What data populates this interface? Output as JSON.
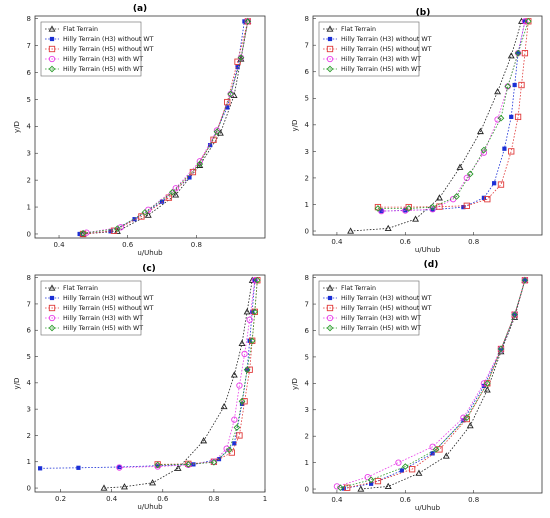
{
  "colors": {
    "flat": "#222222",
    "h3_without": "#1a2fd6",
    "h5_without": "#e03a3a",
    "h3_with": "#e83de8",
    "h5_with": "#2a9a2a"
  },
  "legend": [
    {
      "label": "Flat Terrain",
      "color": "#222222",
      "marker": "triangle"
    },
    {
      "label": "Hilly Terrain (H3) without WT",
      "color": "#1a2fd6",
      "marker": "square-filled"
    },
    {
      "label": "Hilly Terrain (H5) without WT",
      "color": "#e03a3a",
      "marker": "square"
    },
    {
      "label": "Hilly Terrain (H3) with WT",
      "color": "#e83de8",
      "marker": "circle"
    },
    {
      "label": "Hilly Terrain (H5) with WT",
      "color": "#2a9a2a",
      "marker": "diamond"
    }
  ],
  "chart_data": [
    {
      "type": "line",
      "title": "(a)",
      "xlabel": "u/Uhub",
      "ylabel": "y/D",
      "xlim": [
        0.33,
        1.0
      ],
      "ylim": [
        -0.15,
        8.1
      ],
      "xticks": [
        0.4,
        0.6,
        0.8
      ],
      "yticks": [
        0,
        1,
        2,
        3,
        4,
        5,
        6,
        7,
        8
      ],
      "series": [
        {
          "name": "Flat Terrain",
          "points": [
            [
              0.47,
              0.0
            ],
            [
              0.57,
              0.1
            ],
            [
              0.66,
              0.7
            ],
            [
              0.74,
              1.45
            ],
            [
              0.81,
              2.55
            ],
            [
              0.87,
              3.75
            ],
            [
              0.91,
              5.15
            ],
            [
              0.93,
              6.5
            ],
            [
              0.95,
              7.9
            ]
          ]
        },
        {
          "name": "Hilly Terrain (H3) without WT",
          "points": [
            [
              0.46,
              0.0
            ],
            [
              0.55,
              0.1
            ],
            [
              0.62,
              0.55
            ],
            [
              0.7,
              1.2
            ],
            [
              0.78,
              2.1
            ],
            [
              0.84,
              3.3
            ],
            [
              0.89,
              4.7
            ],
            [
              0.92,
              6.2
            ],
            [
              0.94,
              7.9
            ]
          ]
        },
        {
          "name": "Hilly Terrain (H5) without WT",
          "points": [
            [
              0.47,
              0.0
            ],
            [
              0.56,
              0.12
            ],
            [
              0.64,
              0.65
            ],
            [
              0.72,
              1.35
            ],
            [
              0.79,
              2.3
            ],
            [
              0.85,
              3.5
            ],
            [
              0.89,
              4.9
            ],
            [
              0.92,
              6.4
            ],
            [
              0.95,
              7.9
            ]
          ]
        },
        {
          "name": "Hilly Terrain (H3) with WT",
          "points": [
            [
              0.48,
              0.05
            ],
            [
              0.58,
              0.25
            ],
            [
              0.66,
              0.9
            ],
            [
              0.74,
              1.7
            ],
            [
              0.81,
              2.7
            ],
            [
              0.86,
              3.85
            ],
            [
              0.9,
              5.2
            ],
            [
              0.93,
              6.55
            ],
            [
              0.95,
              7.9
            ]
          ]
        },
        {
          "name": "Hilly Terrain (H5) with WT",
          "points": [
            [
              0.47,
              0.03
            ],
            [
              0.57,
              0.2
            ],
            [
              0.65,
              0.8
            ],
            [
              0.73,
              1.55
            ],
            [
              0.81,
              2.6
            ],
            [
              0.86,
              3.8
            ],
            [
              0.9,
              5.2
            ],
            [
              0.93,
              6.55
            ],
            [
              0.95,
              7.9
            ]
          ]
        }
      ]
    },
    {
      "type": "line",
      "title": "(b)",
      "xlabel": "u/Uhub",
      "ylabel": "y/D",
      "xlim": [
        0.33,
        1.0
      ],
      "ylim": [
        -0.15,
        8.1
      ],
      "xticks": [
        0.4,
        0.6,
        0.8
      ],
      "yticks": [
        0,
        1,
        2,
        3,
        4,
        5,
        6,
        7,
        8
      ],
      "series": [
        {
          "name": "Flat Terrain",
          "points": [
            [
              0.44,
              0.0
            ],
            [
              0.55,
              0.1
            ],
            [
              0.63,
              0.45
            ],
            [
              0.7,
              1.25
            ],
            [
              0.76,
              2.4
            ],
            [
              0.82,
              3.75
            ],
            [
              0.87,
              5.25
            ],
            [
              0.91,
              6.6
            ],
            [
              0.94,
              7.9
            ]
          ]
        },
        {
          "name": "Hilly Terrain (H3) without WT",
          "points": [
            [
              0.53,
              0.75
            ],
            [
              0.6,
              0.78
            ],
            [
              0.68,
              0.8
            ],
            [
              0.77,
              0.9
            ],
            [
              0.83,
              1.25
            ],
            [
              0.86,
              1.8
            ],
            [
              0.89,
              3.1
            ],
            [
              0.91,
              4.3
            ],
            [
              0.92,
              5.5
            ],
            [
              0.93,
              6.7
            ],
            [
              0.95,
              7.9
            ]
          ]
        },
        {
          "name": "Hilly Terrain (H5) without WT",
          "points": [
            [
              0.52,
              0.9
            ],
            [
              0.61,
              0.9
            ],
            [
              0.7,
              0.92
            ],
            [
              0.78,
              0.95
            ],
            [
              0.84,
              1.2
            ],
            [
              0.88,
              1.75
            ],
            [
              0.91,
              3.0
            ],
            [
              0.93,
              4.3
            ],
            [
              0.94,
              5.5
            ],
            [
              0.95,
              6.7
            ],
            [
              0.96,
              7.9
            ]
          ]
        },
        {
          "name": "Hilly Terrain (H3) with WT",
          "points": [
            [
              0.53,
              0.75
            ],
            [
              0.6,
              0.77
            ],
            [
              0.68,
              0.82
            ],
            [
              0.74,
              1.2
            ],
            [
              0.78,
              2.0
            ],
            [
              0.83,
              2.95
            ],
            [
              0.87,
              4.2
            ],
            [
              0.9,
              5.45
            ],
            [
              0.93,
              6.7
            ],
            [
              0.95,
              7.9
            ]
          ]
        },
        {
          "name": "Hilly Terrain (H5) with WT",
          "points": [
            [
              0.52,
              0.85
            ],
            [
              0.61,
              0.85
            ],
            [
              0.68,
              0.9
            ],
            [
              0.75,
              1.3
            ],
            [
              0.79,
              2.15
            ],
            [
              0.83,
              3.05
            ],
            [
              0.88,
              4.25
            ],
            [
              0.9,
              5.45
            ],
            [
              0.93,
              6.7
            ],
            [
              0.96,
              7.9
            ]
          ]
        }
      ]
    },
    {
      "type": "line",
      "title": "(c)",
      "xlabel": "u/Uhub",
      "ylabel": "y/D",
      "xlim": [
        0.1,
        1.0
      ],
      "ylim": [
        -0.15,
        8.1
      ],
      "xticks": [
        0.2,
        0.4,
        0.6,
        0.8,
        1
      ],
      "yticks": [
        0,
        1,
        2,
        3,
        4,
        5,
        6,
        7,
        8
      ],
      "series": [
        {
          "name": "Flat Terrain",
          "points": [
            [
              0.37,
              0.0
            ],
            [
              0.45,
              0.05
            ],
            [
              0.56,
              0.2
            ],
            [
              0.66,
              0.75
            ],
            [
              0.76,
              1.8
            ],
            [
              0.84,
              3.1
            ],
            [
              0.88,
              4.3
            ],
            [
              0.91,
              5.5
            ],
            [
              0.93,
              6.7
            ],
            [
              0.95,
              7.9
            ]
          ]
        },
        {
          "name": "Hilly Terrain (H3) without WT",
          "points": [
            [
              0.12,
              0.75
            ],
            [
              0.27,
              0.77
            ],
            [
              0.43,
              0.8
            ],
            [
              0.58,
              0.85
            ],
            [
              0.72,
              0.9
            ],
            [
              0.82,
              1.1
            ],
            [
              0.88,
              1.7
            ],
            [
              0.91,
              3.2
            ],
            [
              0.93,
              4.5
            ],
            [
              0.94,
              5.6
            ],
            [
              0.95,
              6.7
            ],
            [
              0.96,
              7.9
            ]
          ]
        },
        {
          "name": "Hilly Terrain (H5) without WT",
          "points": [
            [
              0.58,
              0.9
            ],
            [
              0.7,
              0.92
            ],
            [
              0.8,
              1.0
            ],
            [
              0.87,
              1.35
            ],
            [
              0.9,
              2.0
            ],
            [
              0.92,
              3.3
            ],
            [
              0.94,
              4.5
            ],
            [
              0.95,
              5.6
            ],
            [
              0.96,
              6.7
            ],
            [
              0.97,
              7.9
            ]
          ]
        },
        {
          "name": "Hilly Terrain (H3) with WT",
          "points": [
            [
              0.43,
              0.78
            ],
            [
              0.58,
              0.82
            ],
            [
              0.7,
              0.88
            ],
            [
              0.8,
              1.0
            ],
            [
              0.85,
              1.5
            ],
            [
              0.88,
              2.6
            ],
            [
              0.9,
              3.9
            ],
            [
              0.92,
              5.1
            ],
            [
              0.94,
              6.4
            ],
            [
              0.96,
              7.9
            ]
          ]
        },
        {
          "name": "Hilly Terrain (H5) with WT",
          "points": [
            [
              0.58,
              0.88
            ],
            [
              0.7,
              0.9
            ],
            [
              0.8,
              0.98
            ],
            [
              0.86,
              1.45
            ],
            [
              0.89,
              2.3
            ],
            [
              0.91,
              3.3
            ],
            [
              0.93,
              4.5
            ],
            [
              0.95,
              5.6
            ],
            [
              0.96,
              6.7
            ],
            [
              0.97,
              7.9
            ]
          ]
        }
      ]
    },
    {
      "type": "line",
      "title": "(d)",
      "xlabel": "u/Uhub",
      "ylabel": "y/D",
      "xlim": [
        0.33,
        1.0
      ],
      "ylim": [
        -0.15,
        8.1
      ],
      "xticks": [
        0.4,
        0.6,
        0.8
      ],
      "yticks": [
        0,
        1,
        2,
        3,
        4,
        5,
        6,
        7,
        8
      ],
      "series": [
        {
          "name": "Flat Terrain",
          "points": [
            [
              0.47,
              0.0
            ],
            [
              0.55,
              0.1
            ],
            [
              0.64,
              0.6
            ],
            [
              0.72,
              1.25
            ],
            [
              0.79,
              2.4
            ],
            [
              0.84,
              3.75
            ],
            [
              0.88,
              5.2
            ],
            [
              0.92,
              6.5
            ],
            [
              0.95,
              7.9
            ]
          ]
        },
        {
          "name": "Hilly Terrain (H3) without WT",
          "points": [
            [
              0.42,
              0.02
            ],
            [
              0.5,
              0.2
            ],
            [
              0.59,
              0.7
            ],
            [
              0.68,
              1.35
            ],
            [
              0.77,
              2.6
            ],
            [
              0.83,
              3.9
            ],
            [
              0.88,
              5.25
            ],
            [
              0.92,
              6.6
            ],
            [
              0.95,
              7.9
            ]
          ]
        },
        {
          "name": "Hilly Terrain (H5) without WT",
          "points": [
            [
              0.43,
              0.05
            ],
            [
              0.52,
              0.3
            ],
            [
              0.62,
              0.75
            ],
            [
              0.7,
              1.5
            ],
            [
              0.78,
              2.65
            ],
            [
              0.84,
              4.0
            ],
            [
              0.88,
              5.3
            ],
            [
              0.92,
              6.6
            ],
            [
              0.95,
              7.9
            ]
          ]
        },
        {
          "name": "Hilly Terrain (H3) with WT",
          "points": [
            [
              0.4,
              0.1
            ],
            [
              0.49,
              0.45
            ],
            [
              0.58,
              1.0
            ],
            [
              0.68,
              1.6
            ],
            [
              0.77,
              2.7
            ],
            [
              0.83,
              4.0
            ],
            [
              0.88,
              5.3
            ],
            [
              0.92,
              6.6
            ],
            [
              0.95,
              7.9
            ]
          ]
        },
        {
          "name": "Hilly Terrain (H5) with WT",
          "points": [
            [
              0.41,
              0.05
            ],
            [
              0.5,
              0.35
            ],
            [
              0.6,
              0.85
            ],
            [
              0.69,
              1.5
            ],
            [
              0.78,
              2.7
            ],
            [
              0.84,
              4.0
            ],
            [
              0.88,
              5.3
            ],
            [
              0.92,
              6.6
            ],
            [
              0.95,
              7.9
            ]
          ]
        }
      ]
    }
  ]
}
